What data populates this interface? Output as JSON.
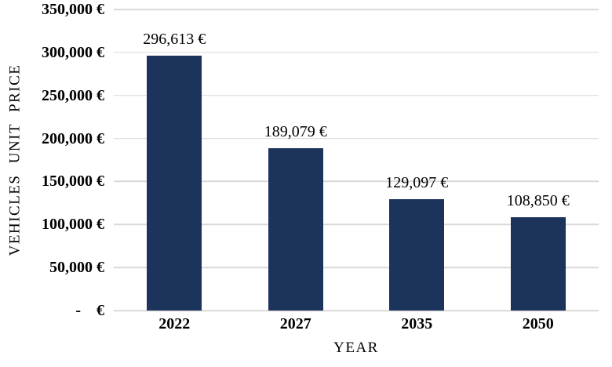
{
  "chart_data": {
    "type": "bar",
    "title": "",
    "xlabel": "YEAR",
    "ylabel": "VEHICLES UNIT PRICE",
    "categories": [
      "2022",
      "2027",
      "2035",
      "2050"
    ],
    "values": [
      296613,
      189079,
      129097,
      108850
    ],
    "value_labels": [
      "296,613 €",
      "189,079 €",
      "129,097 €",
      "108,850 €"
    ],
    "ylim": [
      0,
      350000
    ],
    "y_ticks": [
      {
        "value": 0,
        "label": "-    €"
      },
      {
        "value": 50000,
        "label": "50,000 €"
      },
      {
        "value": 100000,
        "label": "100,000 €"
      },
      {
        "value": 150000,
        "label": "150,000 €"
      },
      {
        "value": 200000,
        "label": "200,000 €"
      },
      {
        "value": 250000,
        "label": "250,000 €"
      },
      {
        "value": 300000,
        "label": "300,000 €"
      },
      {
        "value": 350000,
        "label": "350,000 €"
      }
    ],
    "grid": true,
    "legend": false,
    "bar_color": "#1c335c",
    "gridline_color": "#d9d9d9",
    "text_color": "#000000"
  }
}
